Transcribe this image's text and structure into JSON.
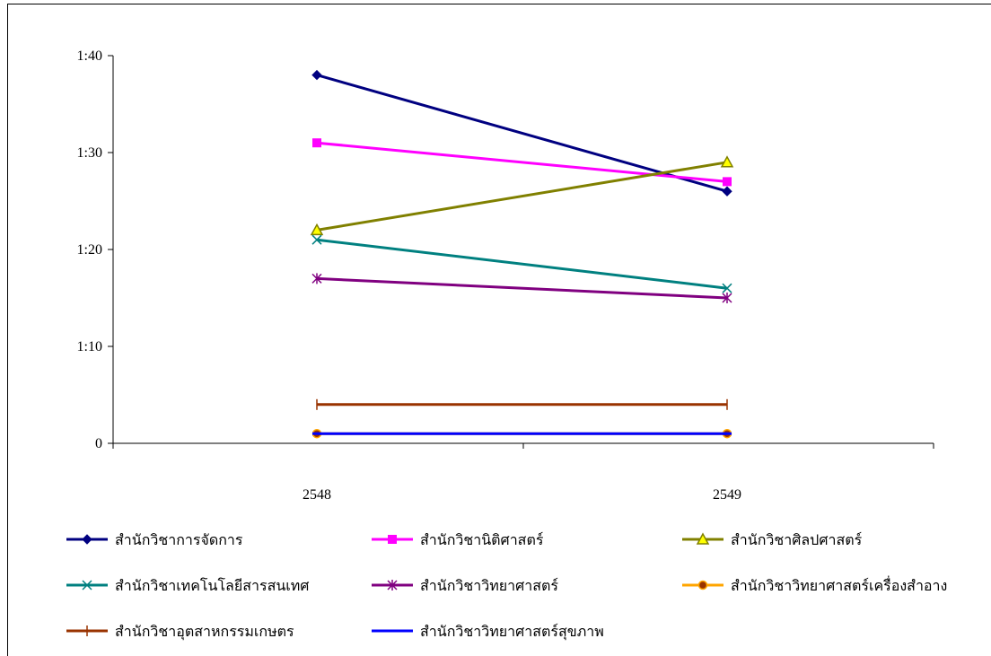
{
  "chart_data": {
    "type": "line",
    "title": "",
    "xlabel": "",
    "ylabel": "",
    "categories": [
      "2548",
      "2549"
    ],
    "y_ticks": [
      {
        "value": 0,
        "label": "0"
      },
      {
        "value": 10,
        "label": "1:10"
      },
      {
        "value": 20,
        "label": "1:20"
      },
      {
        "value": 30,
        "label": "1:30"
      },
      {
        "value": 40,
        "label": "1:40"
      }
    ],
    "ylim": [
      0,
      40
    ],
    "grid": false,
    "legend_position": "bottom",
    "series": [
      {
        "name": "สำนักวิชาการจัดการ",
        "values": [
          38,
          26
        ],
        "color": "#000080",
        "marker": "diamond"
      },
      {
        "name": "สำนักวิชานิติศาสตร์",
        "values": [
          31,
          27
        ],
        "color": "#ff00ff",
        "marker": "square"
      },
      {
        "name": "สำนักวิชาศิลปศาสตร์",
        "values": [
          22,
          29
        ],
        "color": "#808000",
        "marker": "triangle"
      },
      {
        "name": "สำนักวิชาเทคโนโลยีสารสนเทศ",
        "values": [
          21,
          16
        ],
        "color": "#008080",
        "marker": "x"
      },
      {
        "name": "สำนักวิชาวิทยาศาสตร์",
        "values": [
          17,
          15
        ],
        "color": "#800080",
        "marker": "star"
      },
      {
        "name": "สำนักวิชาวิทยาศาสตร์เครื่องสำอาง",
        "values": [
          1,
          1
        ],
        "color": "#ffa500",
        "marker": "circle"
      },
      {
        "name": "สำนักวิชาอุตสาหกรรมเกษตร",
        "values": [
          4,
          4
        ],
        "color": "#993300",
        "marker": "plus"
      },
      {
        "name": "สำนักวิชาวิทยาศาสตร์สุขภาพ",
        "values": [
          1,
          1
        ],
        "color": "#0000ff",
        "marker": "dash"
      }
    ]
  }
}
